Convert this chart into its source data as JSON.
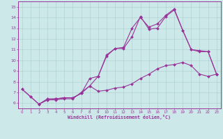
{
  "xlabel": "Windchill (Refroidissement éolien,°C)",
  "xlim": [
    -0.5,
    23.5
  ],
  "ylim": [
    5.5,
    15.5
  ],
  "yticks": [
    6,
    7,
    8,
    9,
    10,
    11,
    12,
    13,
    14,
    15
  ],
  "xticks": [
    0,
    1,
    2,
    3,
    4,
    5,
    6,
    7,
    8,
    9,
    10,
    11,
    12,
    13,
    14,
    15,
    16,
    17,
    18,
    19,
    20,
    21,
    22,
    23
  ],
  "background_color": "#cce8e8",
  "grid_color": "#aacccc",
  "line_color": "#993399",
  "line1_x": [
    0,
    1,
    2,
    3,
    4,
    5,
    6,
    7,
    8,
    9,
    10,
    11,
    12,
    13,
    14,
    15,
    16,
    17,
    18,
    19,
    20,
    21,
    22,
    23
  ],
  "line1_y": [
    7.3,
    6.6,
    5.9,
    6.4,
    6.4,
    6.5,
    6.5,
    6.9,
    8.3,
    8.5,
    10.4,
    11.1,
    11.1,
    12.2,
    14.1,
    12.9,
    13.0,
    14.1,
    14.7,
    12.8,
    11.0,
    10.8,
    10.8,
    8.7
  ],
  "line2_x": [
    0,
    1,
    2,
    3,
    4,
    5,
    6,
    7,
    8,
    9,
    10,
    11,
    12,
    13,
    14,
    15,
    16,
    17,
    18,
    19,
    20,
    21,
    22,
    23
  ],
  "line2_y": [
    7.3,
    6.6,
    5.9,
    6.3,
    6.3,
    6.4,
    6.4,
    7.0,
    7.6,
    7.1,
    7.2,
    7.4,
    7.5,
    7.8,
    8.3,
    8.7,
    9.2,
    9.5,
    9.6,
    9.8,
    9.5,
    8.7,
    8.5,
    8.7
  ],
  "line3_x": [
    2,
    3,
    4,
    5,
    6,
    7,
    8,
    9,
    10,
    11,
    12,
    13,
    14,
    15,
    16,
    17,
    18,
    19,
    20,
    21,
    22,
    23
  ],
  "line3_y": [
    5.9,
    6.3,
    6.4,
    6.5,
    6.5,
    6.9,
    7.6,
    8.5,
    10.5,
    11.1,
    11.2,
    13.0,
    14.0,
    13.1,
    13.4,
    14.2,
    14.8,
    12.8,
    11.0,
    10.9,
    10.8,
    8.7
  ]
}
